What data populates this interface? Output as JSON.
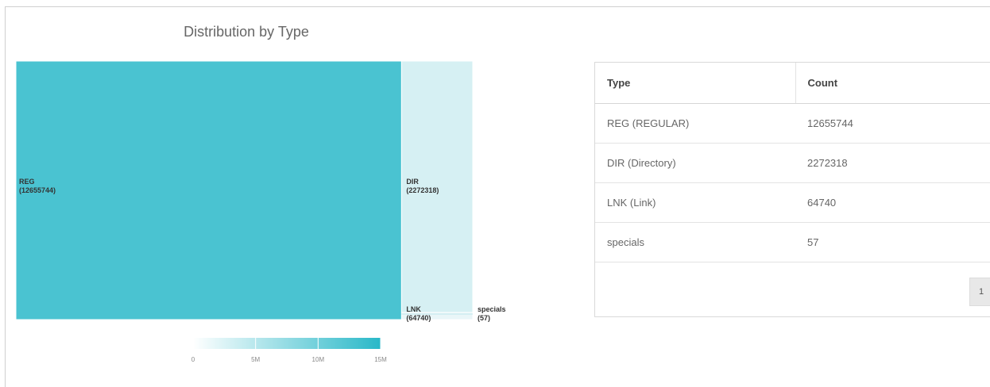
{
  "chart_data": {
    "type": "treemap",
    "title": "Distribution by Type",
    "items": [
      {
        "name": "REG",
        "value": 12655744,
        "label_line1": "REG",
        "label_line2": "(12655744)"
      },
      {
        "name": "DIR",
        "value": 2272318,
        "label_line1": "DIR",
        "label_line2": "(2272318)"
      },
      {
        "name": "LNK",
        "value": 64740,
        "label_line1": "LNK",
        "label_line2": "(64740)"
      },
      {
        "name": "specials",
        "value": 57,
        "label_line1": "specials",
        "label_line2": "(57)"
      }
    ],
    "color_scale": {
      "min": 0,
      "max": 15000000,
      "min_color": "#ffffff",
      "max_color": "#29b8c8",
      "ticks": [
        {
          "value": 0,
          "label": "0"
        },
        {
          "value": 5000000,
          "label": "5M"
        },
        {
          "value": 10000000,
          "label": "10M"
        },
        {
          "value": 15000000,
          "label": "15M"
        }
      ]
    }
  },
  "table": {
    "headers": [
      "Type",
      "Count"
    ],
    "rows": [
      [
        "REG (REGULAR)",
        "12655744"
      ],
      [
        "DIR (Directory)",
        "2272318"
      ],
      [
        "LNK (Link)",
        "64740"
      ],
      [
        "specials",
        "57"
      ]
    ],
    "page_label": "1"
  }
}
